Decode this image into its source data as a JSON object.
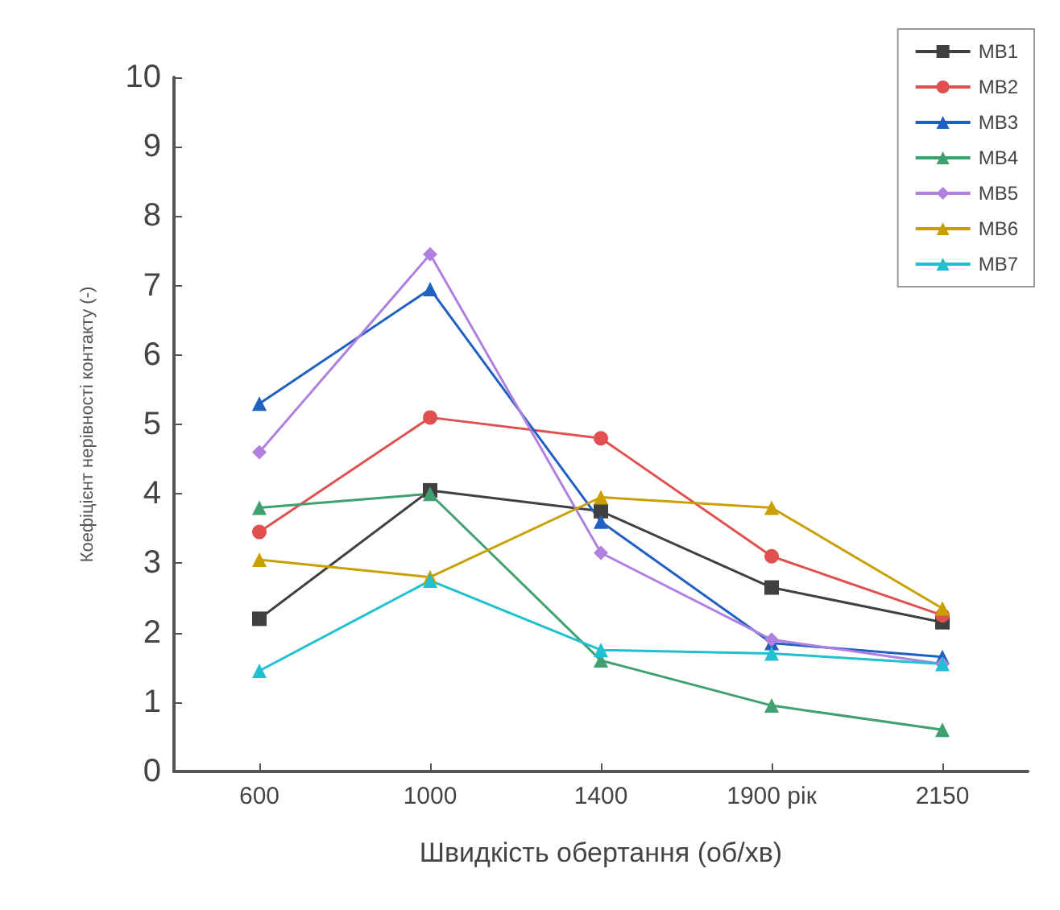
{
  "chart_data": {
    "type": "line",
    "xlabel": "Швидкість обертання (об/хв)",
    "ylabel": "Коефіцієнт нерівності контакту (-)",
    "categories": [
      "600",
      "1000",
      "1400",
      "1900 рік",
      "2150"
    ],
    "ylim": [
      0,
      10
    ],
    "yticks": [
      0,
      1,
      2,
      3,
      4,
      5,
      6,
      7,
      8,
      9,
      10
    ],
    "grid": false,
    "legend": "top right",
    "series": [
      {
        "name": "MB1",
        "color": "#404040",
        "marker": "square",
        "values": [
          2.2,
          4.05,
          3.75,
          2.65,
          2.15
        ]
      },
      {
        "name": "MB2",
        "color": "#e05050",
        "marker": "circle",
        "values": [
          3.45,
          5.1,
          4.8,
          3.1,
          2.25
        ]
      },
      {
        "name": "MB3",
        "color": "#2060c0",
        "marker": "triangle",
        "values": [
          5.3,
          6.95,
          3.6,
          1.85,
          1.65
        ]
      },
      {
        "name": "MB4",
        "color": "#40a070",
        "marker": "triangle",
        "values": [
          3.8,
          4.0,
          1.6,
          0.95,
          0.6
        ]
      },
      {
        "name": "MB5",
        "color": "#b080e0",
        "marker": "diamond",
        "values": [
          4.6,
          7.45,
          3.15,
          1.9,
          1.55
        ]
      },
      {
        "name": "MB6",
        "color": "#c8a000",
        "marker": "triangle",
        "values": [
          3.05,
          2.8,
          3.95,
          3.8,
          2.35
        ]
      },
      {
        "name": "MB7",
        "color": "#20c0d0",
        "marker": "triangle",
        "values": [
          1.45,
          2.75,
          1.75,
          1.7,
          1.55
        ]
      }
    ]
  }
}
